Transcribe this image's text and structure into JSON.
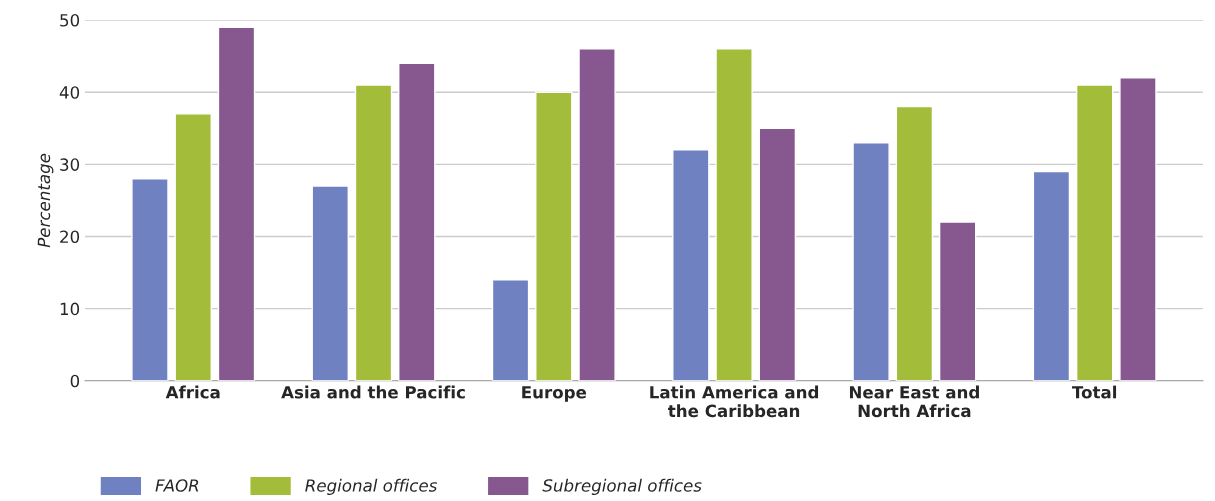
{
  "chart_data": {
    "type": "bar",
    "ylabel": "Percentage",
    "categories": [
      "Africa",
      "Asia and the Pacific",
      "Europe",
      "Latin America and\nthe Caribbean",
      "Near East and\nNorth Africa",
      "Total"
    ],
    "series": [
      {
        "name": "FAOR",
        "color": "#6f81c0",
        "values": [
          28,
          27,
          14,
          32,
          33,
          29
        ]
      },
      {
        "name": "Regional offices",
        "color": "#a3bd3b",
        "values": [
          37,
          41,
          40,
          46,
          38,
          41
        ]
      },
      {
        "name": "Subregional offices",
        "color": "#86588f",
        "values": [
          49,
          44,
          46,
          35,
          22,
          42
        ]
      }
    ],
    "ylim": [
      0,
      50
    ],
    "yticks": [
      0,
      10,
      20,
      30,
      40,
      50
    ],
    "grid": "y",
    "legend": "bottom left"
  }
}
